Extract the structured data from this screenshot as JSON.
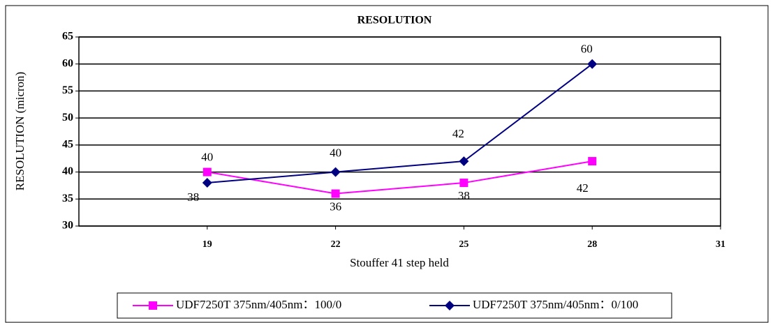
{
  "chart_data": {
    "type": "line",
    "title": "RESOLUTION",
    "x_label": "Stouffer 41 step held",
    "y_label": "RESOLUTION (micron)",
    "x": [
      19,
      22,
      25,
      28
    ],
    "xlim": [
      16,
      31
    ],
    "xticks": [
      19,
      22,
      25,
      28,
      31
    ],
    "ylim": [
      30,
      65
    ],
    "yticks": [
      30,
      35,
      40,
      45,
      50,
      55,
      60,
      65
    ],
    "grid": true,
    "legend": "bottom",
    "series": [
      {
        "name": "UDF7250T 375nm/405nm：100/0",
        "color": "#ff00ff",
        "marker": "square",
        "values": [
          40,
          36,
          38,
          42
        ]
      },
      {
        "name": "UDF7250T 375nm/405nm：0/100",
        "color": "#000080",
        "marker": "diamond",
        "values": [
          38,
          40,
          42,
          60
        ]
      }
    ]
  }
}
